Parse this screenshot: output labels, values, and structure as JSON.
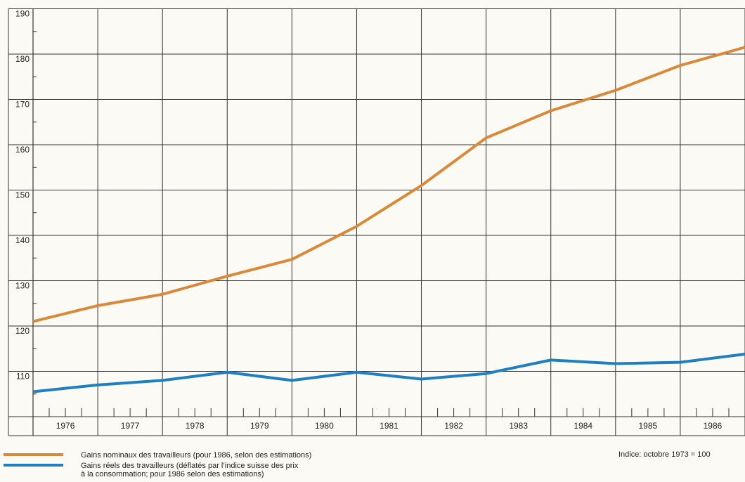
{
  "chart_data": {
    "type": "line",
    "x": [
      1976,
      1977,
      1978,
      1979,
      1980,
      1981,
      1982,
      1983,
      1984,
      1985,
      1986,
      1987
    ],
    "series": [
      {
        "name": "Gains nominaux des travailleurs (pour 1986, selon des estimations)",
        "color": "#d9893a",
        "values": [
          121,
          124.5,
          127,
          131,
          134.7,
          142,
          151,
          161.5,
          167.5,
          172,
          177.5,
          181.5
        ]
      },
      {
        "name": "Gains réels des travailleurs (déflatés par l’indice suisse des prix\nà la consommation; pour 1986 selon des estimations)",
        "color": "#1f7fc0",
        "values": [
          105.5,
          107,
          108,
          109.8,
          108,
          109.8,
          108.3,
          109.5,
          112.5,
          111.7,
          112,
          113.8
        ]
      }
    ],
    "xlim": [
      1976,
      1987
    ],
    "xticks": [
      {
        "value": 1976.5,
        "label": "1976"
      },
      {
        "value": 1977.5,
        "label": "1977"
      },
      {
        "value": 1978.5,
        "label": "1978"
      },
      {
        "value": 1979.5,
        "label": "1979"
      },
      {
        "value": 1980.5,
        "label": "1980"
      },
      {
        "value": 1981.5,
        "label": "1981"
      },
      {
        "value": 1982.5,
        "label": "1982"
      },
      {
        "value": 1983.5,
        "label": "1983"
      },
      {
        "value": 1984.5,
        "label": "1984"
      },
      {
        "value": 1985.5,
        "label": "1985"
      },
      {
        "value": 1986.5,
        "label": "1986"
      }
    ],
    "ylim": [
      100,
      190
    ],
    "yticks": [
      110,
      120,
      130,
      140,
      150,
      160,
      170,
      180,
      190
    ],
    "grid": true,
    "annotation": "Indice: octobre 1973 = 100"
  }
}
